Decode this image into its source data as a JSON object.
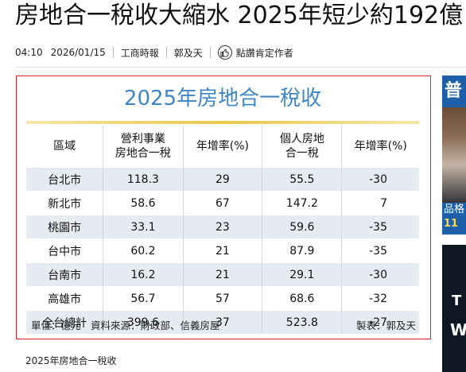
{
  "headline": "房地合一稅收大縮水 2025年短少約192億",
  "meta": {
    "time": "04:10",
    "date": "2026/01/15",
    "source": "工商時報",
    "author": "郭及天",
    "like_label": "點讚肯定作者"
  },
  "figure": {
    "title": "2025年房地合一稅收",
    "headers": [
      "區域",
      "營利事業\n房地合一稅",
      "年增率(%)",
      "個人房地\n合一稅",
      "年增率(%)"
    ],
    "rows": [
      [
        "台北市",
        "118.3",
        "29",
        "55.5",
        "-30"
      ],
      [
        "新北市",
        "58.6",
        "67",
        "147.2",
        "7"
      ],
      [
        "桃園市",
        "33.1",
        "23",
        "59.6",
        "-35"
      ],
      [
        "台中市",
        "60.2",
        "21",
        "87.9",
        "-35"
      ],
      [
        "台南市",
        "16.2",
        "21",
        "29.1",
        "-30"
      ],
      [
        "高雄市",
        "56.7",
        "57",
        "68.6",
        "-32"
      ],
      [
        "全台總計",
        "399.6",
        "37",
        "523.8",
        "-27"
      ]
    ],
    "footer_left": "單位：億元　資料來源：財政部、信義房屋",
    "footer_right": "製表：郭及天"
  },
  "caption": "2025年房地合一稅收",
  "side": {
    "ad1_top": "普",
    "ad1_bottom_text": "品格",
    "ad1_bottom_num": "11",
    "ad2_a": "T",
    "ad2_b": "W"
  }
}
